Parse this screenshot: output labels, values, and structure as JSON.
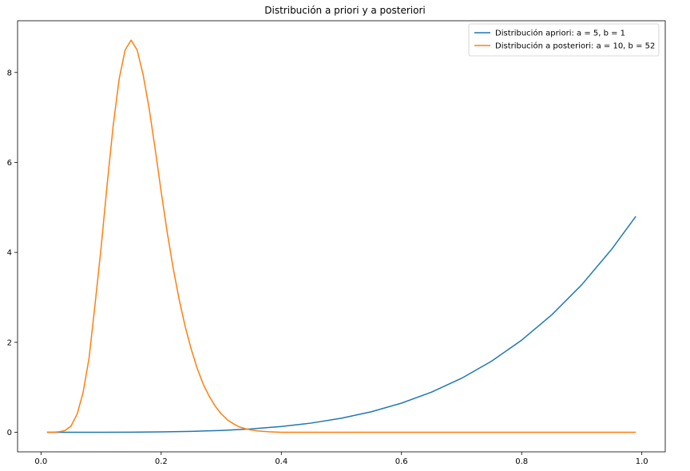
{
  "chart_data": {
    "type": "line",
    "title": "Distribución a priori y a posteriori",
    "xlabel": "",
    "ylabel": "",
    "xlim": [
      -0.039,
      1.039
    ],
    "ylim": [
      -0.435,
      9.15
    ],
    "xticks": [
      0.0,
      0.2,
      0.4,
      0.6,
      0.8,
      1.0
    ],
    "xtick_labels": [
      "0.0",
      "0.2",
      "0.4",
      "0.6",
      "0.8",
      "1.0"
    ],
    "yticks": [
      0,
      2,
      4,
      6,
      8
    ],
    "ytick_labels": [
      "0",
      "2",
      "4",
      "6",
      "8"
    ],
    "grid": false,
    "legend_position": "top-right",
    "series": [
      {
        "name": "Distribución apriori: a = 5, b = 1",
        "color": "#1f77b4",
        "x": [
          0.01,
          0.05,
          0.1,
          0.15,
          0.2,
          0.25,
          0.3,
          0.35,
          0.4,
          0.45,
          0.5,
          0.55,
          0.6,
          0.65,
          0.7,
          0.75,
          0.8,
          0.85,
          0.9,
          0.95,
          0.99
        ],
        "y": [
          0.0,
          0.0,
          0.0005,
          0.0025,
          0.008,
          0.0195,
          0.0405,
          0.075,
          0.128,
          0.205,
          0.3125,
          0.4575,
          0.648,
          0.8925,
          1.2005,
          1.582,
          2.048,
          2.61,
          3.2805,
          4.0725,
          4.8
        ]
      },
      {
        "name": "Distribución a posteriori: a = 10, b = 52",
        "color": "#ff7f0e",
        "x": [
          0.01,
          0.02,
          0.03,
          0.04,
          0.05,
          0.06,
          0.07,
          0.08,
          0.09,
          0.1,
          0.11,
          0.12,
          0.13,
          0.14,
          0.15,
          0.16,
          0.17,
          0.18,
          0.19,
          0.2,
          0.21,
          0.22,
          0.23,
          0.24,
          0.25,
          0.26,
          0.27,
          0.28,
          0.29,
          0.3,
          0.31,
          0.32,
          0.33,
          0.34,
          0.35,
          0.36,
          0.37,
          0.38,
          0.4,
          0.45,
          0.5,
          0.6,
          0.7,
          0.8,
          0.9,
          0.99
        ],
        "y": [
          0.0,
          0.0,
          0.01,
          0.04,
          0.14,
          0.4,
          0.88,
          1.65,
          2.85,
          4.1,
          5.5,
          6.8,
          7.85,
          8.5,
          8.72,
          8.5,
          7.95,
          7.2,
          6.3,
          5.35,
          4.45,
          3.65,
          2.95,
          2.35,
          1.85,
          1.42,
          1.07,
          0.8,
          0.58,
          0.41,
          0.28,
          0.19,
          0.12,
          0.08,
          0.05,
          0.03,
          0.02,
          0.01,
          0.0,
          0.0,
          0.0,
          0.0,
          0.0,
          0.0,
          0.0,
          0.0
        ]
      }
    ]
  }
}
